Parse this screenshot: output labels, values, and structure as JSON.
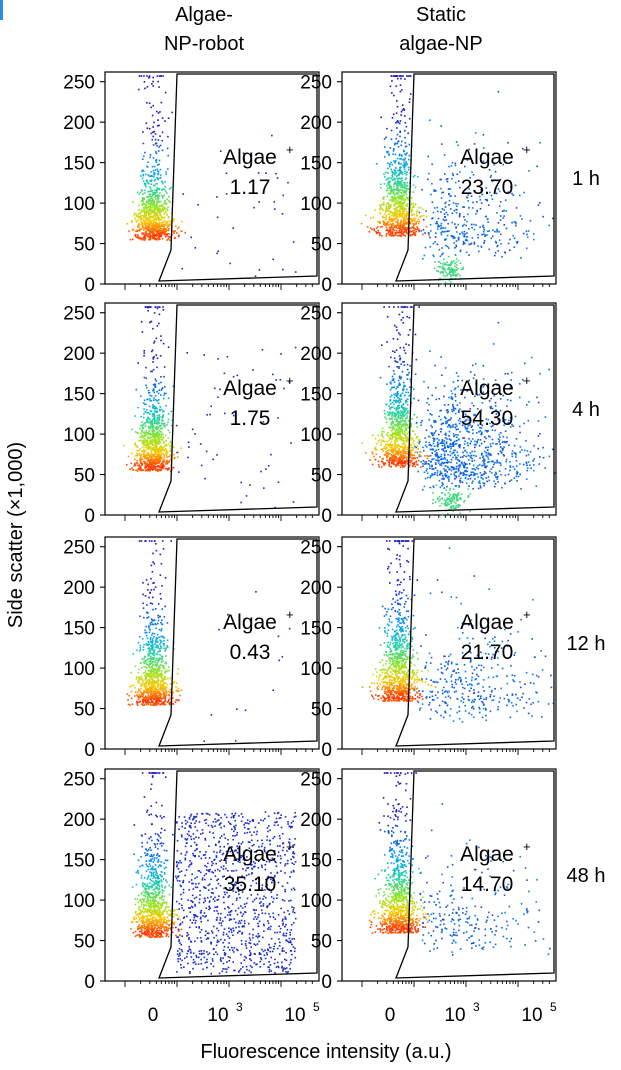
{
  "figure": {
    "column_headers": [
      {
        "line1": "Algae-",
        "line2": "NP-robot"
      },
      {
        "line1": "Static",
        "line2": "algae-NP"
      }
    ],
    "row_labels": [
      "1 h",
      "4 h",
      "12 h",
      "48 h"
    ],
    "y_axis_title": "Side scatter (×1,000)",
    "x_axis_title": "Fluorescence intensity (a.u.)",
    "gate_label": "Algae",
    "gate_label_superscript": "+",
    "colors": {
      "density_low": "#1c1cff",
      "density_mid": "#22d2a0",
      "density_high": "#ff3a00",
      "gate": "#000000",
      "corner_mark": "#2e8ce6"
    }
  },
  "chart_data": [
    {
      "type": "scatter",
      "panel": "Algae-NP-robot / 1 h",
      "x_scale": "biexponential",
      "ylim": [
        0,
        262
      ],
      "yticks": [
        0,
        50,
        100,
        150,
        200,
        250
      ],
      "xticks": [
        "0",
        "10^3",
        "10^5"
      ],
      "gate_percent": "1.17"
    },
    {
      "type": "scatter",
      "panel": "Static algae-NP / 1 h",
      "x_scale": "biexponential",
      "ylim": [
        0,
        262
      ],
      "yticks": [
        0,
        50,
        100,
        150,
        200,
        250
      ],
      "xticks": [
        "0",
        "10^3",
        "10^5"
      ],
      "gate_percent": "23.70"
    },
    {
      "type": "scatter",
      "panel": "Algae-NP-robot / 4 h",
      "x_scale": "biexponential",
      "ylim": [
        0,
        262
      ],
      "yticks": [
        0,
        50,
        100,
        150,
        200,
        250
      ],
      "xticks": [
        "0",
        "10^3",
        "10^5"
      ],
      "gate_percent": "1.75"
    },
    {
      "type": "scatter",
      "panel": "Static algae-NP / 4 h",
      "x_scale": "biexponential",
      "ylim": [
        0,
        262
      ],
      "yticks": [
        0,
        50,
        100,
        150,
        200,
        250
      ],
      "xticks": [
        "0",
        "10^3",
        "10^5"
      ],
      "gate_percent": "54.30"
    },
    {
      "type": "scatter",
      "panel": "Algae-NP-robot / 12 h",
      "x_scale": "biexponential",
      "ylim": [
        0,
        262
      ],
      "yticks": [
        0,
        50,
        100,
        150,
        200,
        250
      ],
      "xticks": [
        "0",
        "10^3",
        "10^5"
      ],
      "gate_percent": "0.43"
    },
    {
      "type": "scatter",
      "panel": "Static algae-NP / 12 h",
      "x_scale": "biexponential",
      "ylim": [
        0,
        262
      ],
      "yticks": [
        0,
        50,
        100,
        150,
        200,
        250
      ],
      "xticks": [
        "0",
        "10^3",
        "10^5"
      ],
      "gate_percent": "21.70"
    },
    {
      "type": "scatter",
      "panel": "Algae-NP-robot / 48 h",
      "x_scale": "biexponential",
      "ylim": [
        0,
        262
      ],
      "yticks": [
        0,
        50,
        100,
        150,
        200,
        250
      ],
      "xticks": [
        "0",
        "10^3",
        "10^5"
      ],
      "gate_percent": "35.10"
    },
    {
      "type": "scatter",
      "panel": "Static algae-NP / 48 h",
      "x_scale": "biexponential",
      "ylim": [
        0,
        262
      ],
      "yticks": [
        0,
        50,
        100,
        150,
        200,
        250
      ],
      "xticks": [
        "0",
        "10^3",
        "10^5"
      ],
      "gate_percent": "14.70"
    }
  ]
}
